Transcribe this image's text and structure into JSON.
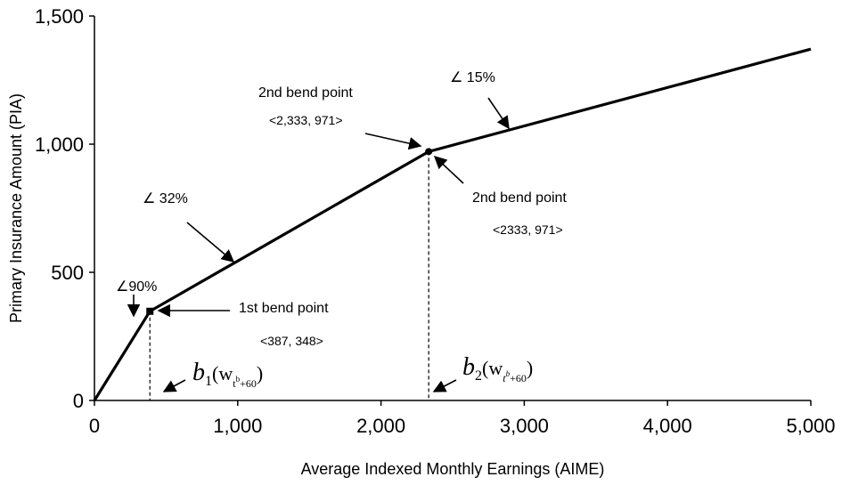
{
  "chart_data": {
    "type": "line",
    "title": "",
    "xlabel": "Average Indexed Monthly Earnings (AIME)",
    "ylabel": "Primary Insurance Amount (PIA)",
    "xlim": [
      0,
      5000
    ],
    "ylim": [
      0,
      1500
    ],
    "grid": false,
    "legend": "none",
    "x_ticks": [
      0,
      1000,
      2000,
      3000,
      4000,
      5000
    ],
    "x_tick_labels": [
      "0",
      "1,000",
      "2,000",
      "3,000",
      "4,000",
      "5,000"
    ],
    "y_ticks": [
      0,
      500,
      1000,
      1500
    ],
    "y_tick_labels": [
      "0",
      "500",
      "1,000",
      "1,500"
    ],
    "series": [
      {
        "x": [
          0,
          387,
          2333,
          5000
        ],
        "y": [
          0,
          348,
          971,
          1371
        ]
      }
    ],
    "bend_points": [
      {
        "x": 387,
        "y": 348
      },
      {
        "x": 2333,
        "y": 971
      }
    ],
    "vlines_x": [
      387,
      2333
    ],
    "annotations": {
      "slope1": "∠90%",
      "slope2": "∠ 32%",
      "slope3": "∠ 15%",
      "bend1_title": "1st bend point",
      "bend1_coords": "<387, 348>",
      "bend2_title_upper": "2nd bend point",
      "bend2_coords_upper": "<2,333, 971>",
      "bend2_title_lower": "2nd bend point",
      "bend2_coords_lower": "<2333, 971>",
      "b1_symbol": "b",
      "b1_sub": "1",
      "b1_open": "(w",
      "b1_sub_t": "t",
      "b1_sup_b": "b",
      "b1_sub_tail": "+60",
      "b1_close": ")",
      "b2_symbol": "b",
      "b2_sub": "2",
      "b2_open": "(w",
      "b2_sub_t": "t",
      "b2_sup_b": "b",
      "b2_sub_tail": "+60",
      "b2_close": ")"
    }
  }
}
